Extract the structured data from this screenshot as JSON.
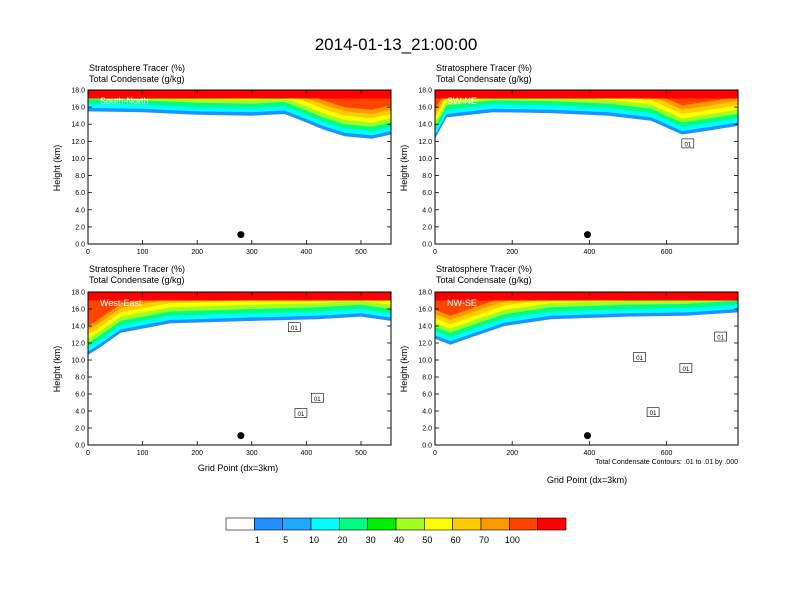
{
  "page": {
    "title": "2014-01-13_21:00:00"
  },
  "panel_titles": {
    "line1": "Stratosphere Tracer   (%)",
    "line2": "Total Condensate   (g/kg)"
  },
  "axis_labels": {
    "y": "Height (km)",
    "x": "Grid Point (dx=3km)"
  },
  "contour_note": "Total Condensate Contours: .01 to .01 by .000",
  "colorbar": {
    "levels": [
      "1",
      "5",
      "10",
      "20",
      "30",
      "40",
      "50",
      "60",
      "70",
      "100"
    ],
    "colors": [
      "#ffffff",
      "#1e90ff",
      "#1ea8ff",
      "#00ffff",
      "#00ff80",
      "#00ee00",
      "#a0ff20",
      "#ffff00",
      "#ffcc00",
      "#ff9900",
      "#ff4400",
      "#ff0000"
    ]
  },
  "chart_data": [
    {
      "type": "heatmap",
      "id": "south-north",
      "inset_label": "South-North",
      "xlim": [
        0,
        555
      ],
      "ylim": [
        0,
        18
      ],
      "xticks": [
        "0",
        "100",
        "200",
        "300",
        "400",
        "500"
      ],
      "xtick_values": [
        0,
        100,
        200,
        300,
        400,
        500
      ],
      "yticks": [
        "0.0",
        "2.0",
        "4.0",
        "6.0",
        "8.0",
        "10.0",
        "12.0",
        "14.0",
        "16.0",
        "18.0"
      ],
      "marker": {
        "x": 280,
        "y": 1.1
      },
      "tracer_bottom_km": [
        [
          0,
          15.5
        ],
        [
          100,
          15.4
        ],
        [
          200,
          15.1
        ],
        [
          300,
          15.0
        ],
        [
          360,
          15.2
        ],
        [
          400,
          14.2
        ],
        [
          430,
          13.4
        ],
        [
          470,
          12.6
        ],
        [
          520,
          12.3
        ],
        [
          555,
          12.8
        ]
      ],
      "contour_labels": []
    },
    {
      "type": "heatmap",
      "id": "sw-ne",
      "inset_label": "SW-NE",
      "xlim": [
        0,
        785
      ],
      "ylim": [
        0,
        18
      ],
      "xticks": [
        "0",
        "200",
        "400",
        "600"
      ],
      "xtick_values": [
        0,
        200,
        400,
        600
      ],
      "yticks": [
        "0.0",
        "2.0",
        "4.0",
        "6.0",
        "8.0",
        "10.0",
        "12.0",
        "14.0",
        "16.0",
        "18.0"
      ],
      "marker": {
        "x": 395,
        "y": 1.1
      },
      "tracer_bottom_km": [
        [
          0,
          12.3
        ],
        [
          30,
          14.8
        ],
        [
          150,
          15.4
        ],
        [
          300,
          15.3
        ],
        [
          450,
          15.0
        ],
        [
          560,
          14.4
        ],
        [
          600,
          13.6
        ],
        [
          640,
          12.8
        ],
        [
          700,
          13.2
        ],
        [
          785,
          13.8
        ]
      ],
      "contour_labels": [
        {
          "text": "01",
          "x": 655,
          "y": 11.7
        }
      ]
    },
    {
      "type": "heatmap",
      "id": "west-east",
      "inset_label": "West-East",
      "xlim": [
        0,
        555
      ],
      "ylim": [
        0,
        18
      ],
      "xticks": [
        "0",
        "100",
        "200",
        "300",
        "400",
        "500"
      ],
      "xtick_values": [
        0,
        100,
        200,
        300,
        400,
        500
      ],
      "yticks": [
        "0.0",
        "2.0",
        "4.0",
        "6.0",
        "8.0",
        "10.0",
        "12.0",
        "14.0",
        "16.0",
        "18.0"
      ],
      "marker": {
        "x": 280,
        "y": 1.1
      },
      "tracer_bottom_km": [
        [
          0,
          10.6
        ],
        [
          20,
          11.4
        ],
        [
          60,
          13.2
        ],
        [
          150,
          14.3
        ],
        [
          300,
          14.6
        ],
        [
          420,
          14.8
        ],
        [
          500,
          15.1
        ],
        [
          555,
          14.6
        ]
      ],
      "contour_labels": [
        {
          "text": "01",
          "x": 378,
          "y": 13.8
        },
        {
          "text": "01",
          "x": 420,
          "y": 5.5
        },
        {
          "text": "01",
          "x": 390,
          "y": 3.7
        }
      ]
    },
    {
      "type": "heatmap",
      "id": "nw-se",
      "inset_label": "NW-SE",
      "xlim": [
        0,
        785
      ],
      "ylim": [
        0,
        18
      ],
      "xticks": [
        "0",
        "200",
        "400",
        "600"
      ],
      "xtick_values": [
        0,
        200,
        400,
        600
      ],
      "yticks": [
        "0.0",
        "2.0",
        "4.0",
        "6.0",
        "8.0",
        "10.0",
        "12.0",
        "14.0",
        "16.0",
        "18.0"
      ],
      "marker": {
        "x": 395,
        "y": 1.1
      },
      "tracer_bottom_km": [
        [
          0,
          12.5
        ],
        [
          40,
          11.8
        ],
        [
          90,
          12.6
        ],
        [
          180,
          14.0
        ],
        [
          300,
          14.8
        ],
        [
          500,
          15.1
        ],
        [
          650,
          15.2
        ],
        [
          785,
          15.6
        ]
      ],
      "contour_labels": [
        {
          "text": "01",
          "x": 740,
          "y": 12.7
        },
        {
          "text": "01",
          "x": 530,
          "y": 10.3
        },
        {
          "text": "01",
          "x": 650,
          "y": 9.0
        },
        {
          "text": "01",
          "x": 565,
          "y": 3.8
        }
      ]
    }
  ]
}
